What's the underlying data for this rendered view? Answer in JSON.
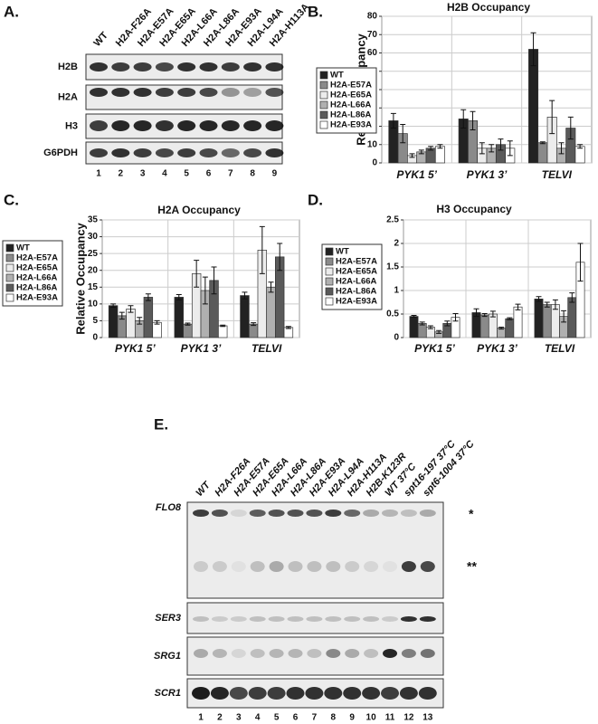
{
  "panel_a": {
    "label": "A.",
    "lanes": [
      "WT",
      "H2A-F26A",
      "H2A-E57A",
      "H2A-E65A",
      "H2A-L66A",
      "H2A-L86A",
      "H2A-E93A",
      "H2A-L94A",
      "H2A-H113A"
    ],
    "rows": [
      "H2B",
      "H2A",
      "H3",
      "G6PDH"
    ],
    "lane_numbers": [
      "1",
      "2",
      "3",
      "4",
      "5",
      "6",
      "7",
      "8",
      "9"
    ]
  },
  "chart_data": [
    {
      "type": "bar",
      "label": "B.",
      "title": "H2B Occupancy",
      "y_label": "Relative Occupancy",
      "categories": [
        "PYK1 5’",
        "PYK1 3’",
        "TELVI"
      ],
      "series": [
        {
          "name": "WT",
          "color": "#222222",
          "values": [
            23,
            24,
            62
          ],
          "errors": [
            4,
            5,
            9
          ]
        },
        {
          "name": "H2A-E57A",
          "color": "#8a8a8a",
          "values": [
            16,
            23,
            11
          ],
          "errors": [
            5,
            5,
            0.5
          ]
        },
        {
          "name": "H2A-E65A",
          "color": "#ececec",
          "values": [
            4,
            8,
            25
          ],
          "errors": [
            1,
            3,
            9
          ]
        },
        {
          "name": "H2A-L66A",
          "color": "#b0b0b0",
          "values": [
            6,
            8,
            8
          ],
          "errors": [
            1,
            2,
            3
          ]
        },
        {
          "name": "H2A-L86A",
          "color": "#5a5a5a",
          "values": [
            8,
            10,
            19
          ],
          "errors": [
            1,
            3,
            6
          ]
        },
        {
          "name": "H2A-E93A",
          "color": "#ffffff",
          "values": [
            9,
            8,
            9
          ],
          "errors": [
            1,
            4,
            1
          ]
        }
      ],
      "ylim": [
        0,
        80
      ],
      "yticks": [
        0,
        10,
        20,
        30,
        40,
        50,
        60,
        70,
        80
      ],
      "grid": true
    },
    {
      "type": "bar",
      "label": "C.",
      "title": "H2A Occupancy",
      "y_label": "Relative Occupancy",
      "categories": [
        "PYK1 5’",
        "PYK1 3’",
        "TELVI"
      ],
      "series": [
        {
          "name": "WT",
          "color": "#222222",
          "values": [
            9.5,
            12,
            12.5
          ],
          "errors": [
            0.5,
            0.8,
            1
          ]
        },
        {
          "name": "H2A-E57A",
          "color": "#8a8a8a",
          "values": [
            6.5,
            4,
            4
          ],
          "errors": [
            1,
            0.3,
            0.4
          ]
        },
        {
          "name": "H2A-E65A",
          "color": "#ececec",
          "values": [
            8.5,
            19,
            26
          ],
          "errors": [
            1,
            4,
            7
          ]
        },
        {
          "name": "H2A-L66A",
          "color": "#b0b0b0",
          "values": [
            5,
            14,
            15
          ],
          "errors": [
            1,
            4,
            1.5
          ]
        },
        {
          "name": "H2A-L86A",
          "color": "#5a5a5a",
          "values": [
            12,
            17,
            24
          ],
          "errors": [
            1,
            4,
            4
          ]
        },
        {
          "name": "H2A-E93A",
          "color": "#ffffff",
          "values": [
            4.5,
            3.5,
            3
          ],
          "errors": [
            0.5,
            0.2,
            0.3
          ]
        }
      ],
      "ylim": [
        0,
        35
      ],
      "yticks": [
        0,
        5,
        10,
        15,
        20,
        25,
        30,
        35
      ],
      "grid": true
    },
    {
      "type": "bar",
      "label": "D.",
      "title": "H3 Occupancy",
      "categories": [
        "PYK1 5’",
        "PYK1 3’",
        "TELVI"
      ],
      "series": [
        {
          "name": "WT",
          "color": "#222222",
          "values": [
            0.45,
            0.53,
            0.82
          ],
          "errors": [
            0.02,
            0.08,
            0.05
          ]
        },
        {
          "name": "H2A-E57A",
          "color": "#8a8a8a",
          "values": [
            0.3,
            0.48,
            0.7
          ],
          "errors": [
            0.03,
            0.03,
            0.05
          ]
        },
        {
          "name": "H2A-E65A",
          "color": "#ececec",
          "values": [
            0.22,
            0.5,
            0.7
          ],
          "errors": [
            0.03,
            0.06,
            0.1
          ]
        },
        {
          "name": "H2A-L66A",
          "color": "#b0b0b0",
          "values": [
            0.12,
            0.2,
            0.45
          ],
          "errors": [
            0.03,
            0.02,
            0.12
          ]
        },
        {
          "name": "H2A-L86A",
          "color": "#5a5a5a",
          "values": [
            0.3,
            0.4,
            0.85
          ],
          "errors": [
            0.05,
            0.02,
            0.1
          ]
        },
        {
          "name": "H2A-E93A",
          "color": "#ffffff",
          "values": [
            0.43,
            0.65,
            1.6
          ],
          "errors": [
            0.08,
            0.06,
            0.4
          ]
        }
      ],
      "ylim": [
        0,
        2.5
      ],
      "yticks": [
        0,
        0.5,
        1,
        1.5,
        2,
        2.5
      ],
      "grid": true
    }
  ],
  "panel_e": {
    "label": "E.",
    "lanes": [
      "WT",
      "H2A-F26A",
      "H2A-E57A",
      "H2A-E65A",
      "H2A-L66A",
      "H2A-L86A",
      "H2A-E93A",
      "H2A-L94A",
      "H2A-H113A",
      "H2B-K123R",
      "WT 37°C",
      "spt16-197 37°C",
      "spt6-1004 37°C"
    ],
    "rows": [
      "FLO8",
      "SER3",
      "SRG1",
      "SCR1"
    ],
    "annotations": [
      "*",
      "**"
    ],
    "lane_numbers": [
      "1",
      "2",
      "3",
      "4",
      "5",
      "6",
      "7",
      "8",
      "9",
      "10",
      "11",
      "12",
      "13"
    ]
  }
}
